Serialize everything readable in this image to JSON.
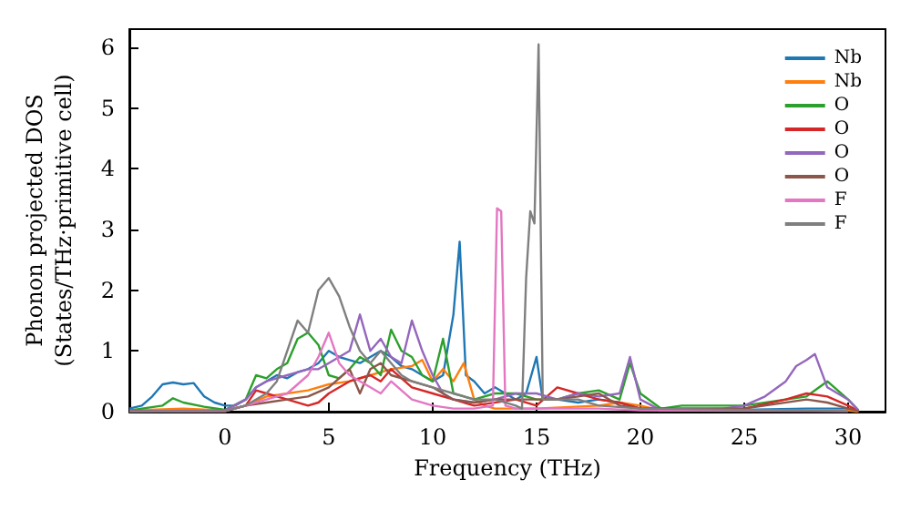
{
  "chart_data": {
    "type": "line",
    "xlabel": "Frequency (THz)",
    "ylabel": "Phonon projected DOS\n(States/THz·primitive cell)",
    "xlim": [
      -4.6,
      31.8
    ],
    "ylim": [
      0,
      6.3
    ],
    "xticks": [
      0,
      5,
      10,
      15,
      20,
      25,
      30
    ],
    "yticks": [
      0,
      1,
      2,
      3,
      4,
      5,
      6
    ],
    "grid": false,
    "legend": "top right",
    "marker": "none",
    "line_style": "solid",
    "series": [
      {
        "name": "Nb",
        "color": "#1f77b4",
        "x": [
          -4.6,
          -4,
          -3.5,
          -3,
          -2.5,
          -2,
          -1.5,
          -1,
          -0.5,
          0,
          0.5,
          1,
          1.5,
          2,
          2.5,
          3,
          3.5,
          4,
          4.5,
          5,
          5.5,
          6,
          6.5,
          7,
          7.5,
          8,
          8.5,
          9,
          9.5,
          10,
          10.5,
          11,
          11.3,
          11.6,
          12,
          12.5,
          13,
          13.5,
          14,
          14.5,
          15,
          15.3,
          16,
          17,
          18,
          19,
          19.5,
          20,
          22,
          25,
          28,
          30,
          30.5
        ],
        "values": [
          0.05,
          0.1,
          0.25,
          0.45,
          0.48,
          0.45,
          0.47,
          0.25,
          0.15,
          0.1,
          0.1,
          0.2,
          0.4,
          0.5,
          0.6,
          0.55,
          0.65,
          0.7,
          0.8,
          1.0,
          0.9,
          0.85,
          0.8,
          0.9,
          1.0,
          0.9,
          0.75,
          0.7,
          0.6,
          0.5,
          0.6,
          1.6,
          2.8,
          0.6,
          0.5,
          0.3,
          0.4,
          0.3,
          0.2,
          0.3,
          0.9,
          0.2,
          0.2,
          0.15,
          0.2,
          0.15,
          0.1,
          0.05,
          0.02,
          0.03,
          0.05,
          0.05,
          0.0
        ]
      },
      {
        "name": "Nb",
        "color": "#ff7f0e",
        "x": [
          -4.6,
          -2,
          0,
          1,
          2,
          3,
          4,
          5,
          6,
          7,
          8,
          9,
          9.5,
          10,
          10.5,
          11,
          11.5,
          12,
          12.5,
          13,
          15,
          18,
          19,
          20,
          21,
          25,
          30,
          30.5
        ],
        "values": [
          0.02,
          0.05,
          0.02,
          0.1,
          0.25,
          0.3,
          0.35,
          0.45,
          0.5,
          0.6,
          0.7,
          0.75,
          0.85,
          0.5,
          0.7,
          0.5,
          0.8,
          0.2,
          0.1,
          0.05,
          0.05,
          0.1,
          0.15,
          0.1,
          0.02,
          0.02,
          0.02,
          0.0
        ]
      },
      {
        "name": "O",
        "color": "#2ca02c",
        "x": [
          -4.6,
          -3,
          -2.5,
          -2,
          -1,
          0,
          1,
          1.5,
          2,
          2.5,
          3,
          3.5,
          4,
          4.5,
          5,
          5.5,
          6,
          6.5,
          7,
          7.5,
          8,
          8.5,
          9,
          9.5,
          10,
          10.5,
          11,
          12,
          13,
          14,
          15,
          16,
          17,
          18,
          19,
          19.5,
          20,
          21,
          22,
          25,
          27,
          28,
          29,
          30,
          30.5
        ],
        "values": [
          0.02,
          0.1,
          0.22,
          0.15,
          0.08,
          0.03,
          0.2,
          0.6,
          0.55,
          0.7,
          0.8,
          1.2,
          1.3,
          1.1,
          0.6,
          0.55,
          0.7,
          0.9,
          0.8,
          0.6,
          1.35,
          1.0,
          0.9,
          0.6,
          0.5,
          1.2,
          0.3,
          0.2,
          0.3,
          0.3,
          0.2,
          0.2,
          0.3,
          0.35,
          0.2,
          0.8,
          0.3,
          0.05,
          0.1,
          0.1,
          0.2,
          0.25,
          0.5,
          0.2,
          0.02
        ]
      },
      {
        "name": "O",
        "color": "#d62728",
        "x": [
          -4.6,
          0,
          1,
          1.5,
          2,
          3,
          4,
          4.5,
          5,
          6,
          7,
          7.5,
          8,
          9,
          10,
          11,
          12,
          14,
          15,
          16,
          17,
          18,
          19,
          20,
          25,
          27,
          28,
          29,
          30,
          30.5
        ],
        "values": [
          0.01,
          0.01,
          0.1,
          0.35,
          0.3,
          0.2,
          0.1,
          0.15,
          0.3,
          0.5,
          0.6,
          0.5,
          0.7,
          0.4,
          0.3,
          0.2,
          0.1,
          0.2,
          0.1,
          0.4,
          0.3,
          0.2,
          0.15,
          0.05,
          0.05,
          0.2,
          0.3,
          0.25,
          0.1,
          0.01
        ]
      },
      {
        "name": "O",
        "color": "#9467bd",
        "x": [
          -4.6,
          0,
          1,
          1.5,
          2,
          3,
          4,
          4.5,
          5,
          6,
          6.5,
          7,
          7.5,
          8,
          8.5,
          9,
          9.5,
          10,
          10.5,
          11,
          12,
          13,
          14,
          15,
          16,
          17,
          18,
          19,
          19.5,
          20,
          21,
          24,
          25,
          26,
          27,
          27.5,
          28,
          28.4,
          29,
          29.5,
          30,
          30.5
        ],
        "values": [
          0.01,
          0.02,
          0.2,
          0.4,
          0.5,
          0.6,
          0.7,
          0.7,
          0.8,
          1.0,
          1.6,
          1.0,
          1.2,
          0.9,
          0.8,
          1.5,
          1.0,
          0.6,
          0.3,
          0.2,
          0.15,
          0.2,
          0.3,
          0.3,
          0.2,
          0.3,
          0.25,
          0.3,
          0.9,
          0.2,
          0.02,
          0.05,
          0.1,
          0.25,
          0.5,
          0.75,
          0.85,
          0.95,
          0.4,
          0.3,
          0.2,
          0.02
        ]
      },
      {
        "name": "O",
        "color": "#8c564b",
        "x": [
          -4.6,
          0,
          1,
          2,
          3,
          4,
          5,
          6,
          6.5,
          7,
          7.5,
          8,
          9,
          10,
          11,
          12,
          13,
          15,
          16,
          17,
          18,
          19,
          20,
          25,
          28,
          29,
          30,
          30.5
        ],
        "values": [
          0.01,
          0.01,
          0.1,
          0.15,
          0.2,
          0.25,
          0.4,
          0.7,
          0.3,
          0.7,
          0.8,
          0.6,
          0.5,
          0.4,
          0.2,
          0.15,
          0.2,
          0.2,
          0.2,
          0.25,
          0.3,
          0.1,
          0.05,
          0.05,
          0.2,
          0.15,
          0.05,
          0.01
        ]
      },
      {
        "name": "F",
        "color": "#e377c2",
        "x": [
          -4.6,
          0,
          1,
          2,
          3,
          4,
          4.5,
          5,
          5.5,
          6,
          7,
          7.5,
          8,
          9,
          10,
          11,
          12,
          12.9,
          13.1,
          13.3,
          13.5,
          14,
          15,
          18,
          20,
          30
        ],
        "values": [
          0.0,
          0.01,
          0.1,
          0.2,
          0.3,
          0.6,
          0.9,
          1.3,
          0.8,
          0.6,
          0.4,
          0.3,
          0.5,
          0.2,
          0.1,
          0.05,
          0.05,
          0.1,
          3.35,
          3.3,
          0.1,
          0.05,
          0.05,
          0.05,
          0.02,
          0.01
        ]
      },
      {
        "name": "F",
        "color": "#7f7f7f",
        "x": [
          -4.6,
          0,
          1,
          2,
          2.5,
          3,
          3.5,
          4,
          4.5,
          5,
          5.5,
          6,
          6.5,
          7,
          7.5,
          8,
          8.5,
          9,
          10,
          11,
          12,
          13,
          14,
          14.3,
          14.5,
          14.7,
          14.9,
          15.1,
          15.3,
          16,
          17,
          18,
          20,
          30
        ],
        "values": [
          0.0,
          0.01,
          0.1,
          0.3,
          0.5,
          1.0,
          1.5,
          1.3,
          2.0,
          2.2,
          1.9,
          1.4,
          1.0,
          0.8,
          1.0,
          0.8,
          0.6,
          0.5,
          0.4,
          0.3,
          0.2,
          0.2,
          0.1,
          0.05,
          2.2,
          3.3,
          3.1,
          6.05,
          0.2,
          0.2,
          0.2,
          0.1,
          0.05,
          0.01
        ]
      }
    ]
  }
}
